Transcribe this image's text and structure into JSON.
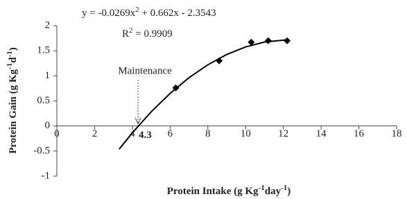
{
  "chart_data": {
    "type": "scatter",
    "equation": [
      "y = -0.0269x",
      "2",
      " + 0.662x - 2.3543"
    ],
    "r_squared": [
      "R",
      "2",
      " = 0.9909"
    ],
    "y_label": [
      "Protein Gain (g Kg",
      "-1",
      "d",
      "-1",
      ")"
    ],
    "x_label": [
      "Protein Intake (g Kg",
      "-1",
      "day",
      "-1",
      ")"
    ],
    "annotation": {
      "label": "Maintenance",
      "x": 4.3
    },
    "xlim": [
      0,
      18
    ],
    "ylim": [
      -1,
      2
    ],
    "xticks": [
      0,
      2,
      4,
      6,
      8,
      10,
      12,
      14,
      16,
      18
    ],
    "yticks": [
      -1,
      -0.5,
      0,
      0.5,
      1,
      1.5,
      2
    ],
    "grid": false,
    "series": [
      {
        "style": "markers",
        "color": "#000000",
        "x": [
          6.3,
          8.6,
          10.3,
          11.2,
          12.2
        ],
        "values": [
          0.76,
          1.3,
          1.67,
          1.7,
          1.7
        ]
      },
      {
        "style": "line",
        "color": "#000000",
        "x": [
          3.3,
          4,
          5,
          6,
          7,
          8,
          9,
          10,
          11,
          12.2
        ],
        "values": [
          -0.463,
          -0.137,
          0.283,
          0.649,
          0.962,
          1.22,
          1.425,
          1.576,
          1.673,
          1.718
        ]
      }
    ]
  }
}
